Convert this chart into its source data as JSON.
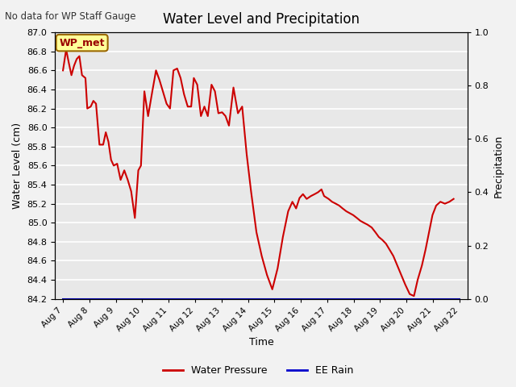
{
  "title": "Water Level and Precipitation",
  "top_left_text": "No data for WP Staff Gauge",
  "ylabel_left": "Water Level (cm)",
  "ylabel_right": "Precipitation",
  "xlabel": "Time",
  "legend_labels": [
    "Water Pressure",
    "EE Rain"
  ],
  "legend_colors": [
    "#cc0000",
    "#0000cc"
  ],
  "annotation_box": "WP_met",
  "annotation_box_facecolor": "#ffff99",
  "annotation_box_edgecolor": "#996600",
  "annotation_text_color": "#990000",
  "ylim_left": [
    84.2,
    87.0
  ],
  "ylim_right": [
    0.0,
    1.0
  ],
  "x_tick_labels": [
    "Aug 7",
    "Aug 8",
    "Aug 9",
    "Aug 10",
    "Aug 11",
    "Aug 12",
    "Aug 13",
    "Aug 14",
    "Aug 15",
    "Aug 16",
    "Aug 17",
    "Aug 18",
    "Aug 19",
    "Aug 20",
    "Aug 21",
    "Aug 22"
  ],
  "water_x": [
    0.0,
    0.12,
    0.22,
    0.32,
    0.42,
    0.52,
    0.62,
    0.72,
    0.85,
    0.92,
    1.05,
    1.15,
    1.25,
    1.38,
    1.52,
    1.62,
    1.72,
    1.82,
    1.92,
    2.05,
    2.18,
    2.32,
    2.45,
    2.58,
    2.72,
    2.85,
    2.95,
    3.08,
    3.22,
    3.38,
    3.52,
    3.65,
    3.78,
    3.92,
    4.05,
    4.18,
    4.32,
    4.45,
    4.58,
    4.72,
    4.85,
    4.95,
    5.08,
    5.22,
    5.35,
    5.48,
    5.62,
    5.75,
    5.88,
    6.02,
    6.15,
    6.28,
    6.45,
    6.62,
    6.78,
    6.95,
    7.12,
    7.32,
    7.52,
    7.72,
    7.92,
    8.12,
    8.32,
    8.52,
    8.68,
    8.82,
    8.95,
    9.08,
    9.22,
    9.38,
    9.52,
    9.65,
    9.78,
    9.88,
    10.05,
    10.18,
    10.32,
    10.45,
    10.58,
    10.72,
    10.85,
    10.98,
    11.12,
    11.25,
    11.38,
    11.52,
    11.68,
    11.82,
    11.95,
    12.08,
    12.22,
    12.35,
    12.5,
    12.65,
    12.8,
    12.95,
    13.12,
    13.28,
    13.42,
    13.58,
    13.72,
    13.85,
    13.98,
    14.12,
    14.28,
    14.45,
    14.62,
    14.78
  ],
  "water_y": [
    86.6,
    86.82,
    86.68,
    86.55,
    86.65,
    86.72,
    86.75,
    86.55,
    86.52,
    86.2,
    86.22,
    86.28,
    86.25,
    85.82,
    85.82,
    85.95,
    85.85,
    85.66,
    85.6,
    85.62,
    85.45,
    85.55,
    85.45,
    85.33,
    85.05,
    85.55,
    85.6,
    86.38,
    86.12,
    86.38,
    86.6,
    86.5,
    86.38,
    86.25,
    86.2,
    86.6,
    86.62,
    86.52,
    86.35,
    86.22,
    86.22,
    86.52,
    86.45,
    86.12,
    86.22,
    86.12,
    86.45,
    86.38,
    86.15,
    86.16,
    86.12,
    86.02,
    86.42,
    86.15,
    86.22,
    85.72,
    85.32,
    84.9,
    84.65,
    84.45,
    84.3,
    84.52,
    84.85,
    85.12,
    85.22,
    85.15,
    85.26,
    85.3,
    85.25,
    85.28,
    85.3,
    85.32,
    85.35,
    85.28,
    85.25,
    85.22,
    85.2,
    85.18,
    85.15,
    85.12,
    85.1,
    85.08,
    85.05,
    85.02,
    85.0,
    84.98,
    84.95,
    84.9,
    84.85,
    84.82,
    84.78,
    84.72,
    84.65,
    84.55,
    84.45,
    84.35,
    84.25,
    84.23,
    84.4,
    84.55,
    84.72,
    84.9,
    85.08,
    85.18,
    85.22,
    85.2,
    85.22,
    85.25
  ],
  "bg_color": "#e8e8e8",
  "fig_bg_color": "#f2f2f2",
  "line_color": "#cc0000",
  "rain_color": "#0000aa",
  "grid_color": "#ffffff",
  "figsize": [
    6.4,
    4.8
  ],
  "dpi": 100
}
